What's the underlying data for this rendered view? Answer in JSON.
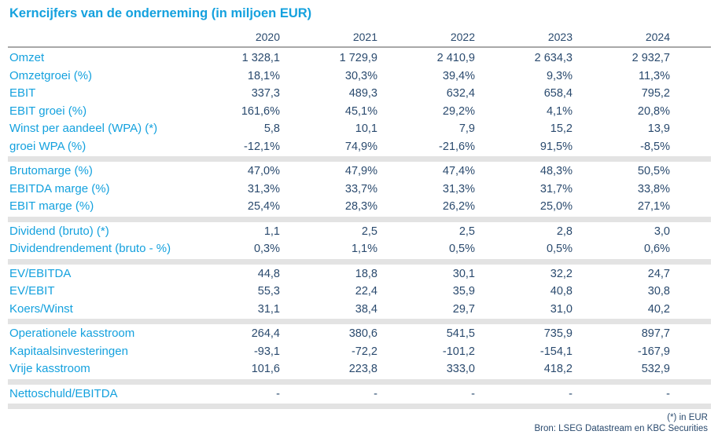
{
  "chart_data": {
    "type": "table",
    "title": "Kerncijfers van de onderneming (in miljoen EUR)",
    "columns": [
      "2020",
      "2021",
      "2022",
      "2023",
      "2024"
    ],
    "sections": [
      {
        "rows": [
          {
            "label": "Omzet",
            "values": [
              "1 328,1",
              "1 729,9",
              "2 410,9",
              "2 634,3",
              "2 932,7"
            ]
          },
          {
            "label": "Omzetgroei (%)",
            "values": [
              "18,1%",
              "30,3%",
              "39,4%",
              "9,3%",
              "11,3%"
            ]
          },
          {
            "label": "EBIT",
            "values": [
              "337,3",
              "489,3",
              "632,4",
              "658,4",
              "795,2"
            ]
          },
          {
            "label": "EBIT groei (%)",
            "values": [
              "161,6%",
              "45,1%",
              "29,2%",
              "4,1%",
              "20,8%"
            ]
          },
          {
            "label": "Winst per aandeel (WPA) (*)",
            "values": [
              "5,8",
              "10,1",
              "7,9",
              "15,2",
              "13,9"
            ]
          },
          {
            "label": "groei WPA (%)",
            "values": [
              "-12,1%",
              "74,9%",
              "-21,6%",
              "91,5%",
              "-8,5%"
            ]
          }
        ]
      },
      {
        "rows": [
          {
            "label": "Brutomarge (%)",
            "values": [
              "47,0%",
              "47,9%",
              "47,4%",
              "48,3%",
              "50,5%"
            ]
          },
          {
            "label": "EBITDA marge (%)",
            "values": [
              "31,3%",
              "33,7%",
              "31,3%",
              "31,7%",
              "33,8%"
            ]
          },
          {
            "label": "EBIT marge (%)",
            "values": [
              "25,4%",
              "28,3%",
              "26,2%",
              "25,0%",
              "27,1%"
            ]
          }
        ]
      },
      {
        "rows": [
          {
            "label": "Dividend (bruto) (*)",
            "values": [
              "1,1",
              "2,5",
              "2,5",
              "2,8",
              "3,0"
            ]
          },
          {
            "label": "Dividendrendement (bruto - %)",
            "values": [
              "0,3%",
              "1,1%",
              "0,5%",
              "0,5%",
              "0,6%"
            ]
          }
        ]
      },
      {
        "rows": [
          {
            "label": "EV/EBITDA",
            "values": [
              "44,8",
              "18,8",
              "30,1",
              "32,2",
              "24,7"
            ]
          },
          {
            "label": "EV/EBIT",
            "values": [
              "55,3",
              "22,4",
              "35,9",
              "40,8",
              "30,8"
            ]
          },
          {
            "label": "Koers/Winst",
            "values": [
              "31,1",
              "38,4",
              "29,7",
              "31,0",
              "40,2"
            ]
          }
        ]
      },
      {
        "rows": [
          {
            "label": "Operationele kasstroom",
            "values": [
              "264,4",
              "380,6",
              "541,5",
              "735,9",
              "897,7"
            ]
          },
          {
            "label": "Kapitaalsinvesteringen",
            "values": [
              "-93,1",
              "-72,2",
              "-101,2",
              "-154,1",
              "-167,9"
            ]
          },
          {
            "label": "Vrije kasstroom",
            "values": [
              "101,6",
              "223,8",
              "333,0",
              "418,2",
              "532,9"
            ]
          }
        ]
      },
      {
        "rows": [
          {
            "label": "Nettoschuld/EBITDA",
            "values": [
              "-",
              "-",
              "-",
              "-",
              "-"
            ]
          }
        ]
      }
    ]
  },
  "footnotes": {
    "note": "(*) in EUR",
    "source": "Bron: LSEG Datastream en KBC Securities"
  },
  "colors": {
    "accent_cyan": "#14A1DE",
    "value_navy": "#2A4A6E",
    "divider_gray": "#E3E3E3",
    "header_rule_gray": "#A8A8A8"
  }
}
